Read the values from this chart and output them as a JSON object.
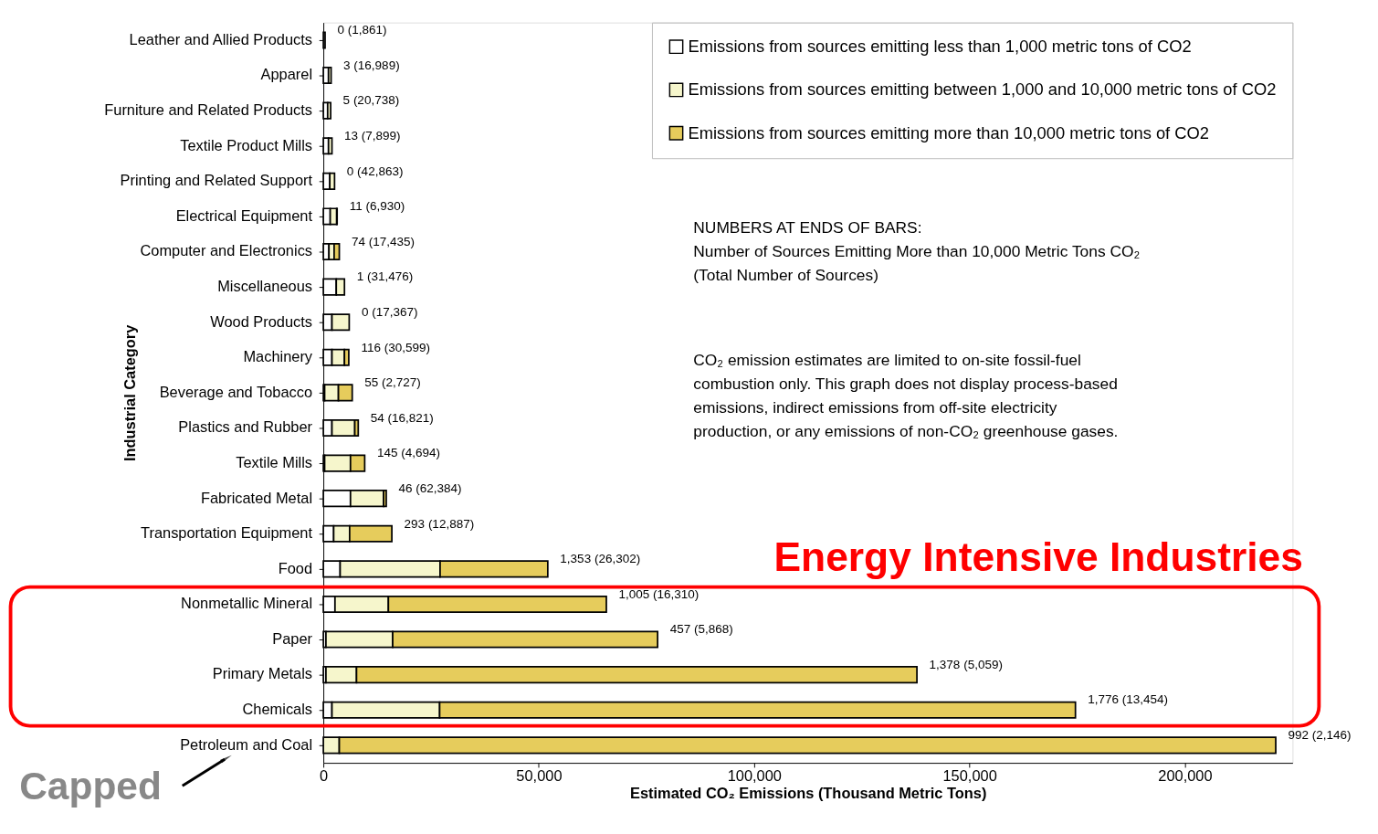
{
  "chart_data": {
    "type": "bar",
    "orientation": "horizontal",
    "stacked": true,
    "xlabel": "Estimated CO₂ Emissions (Thousand Metric Tons)",
    "ylabel": "Industrial Category",
    "categories": [
      "Leather and Allied Products",
      "Apparel",
      "Furniture and Related Products",
      "Textile Product Mills",
      "Printing and Related Support",
      "Electrical Equipment",
      "Computer and Electronics",
      "Miscellaneous",
      "Wood Products",
      "Machinery",
      "Beverage and Tobacco",
      "Plastics and Rubber",
      "Textile Mills",
      "Fabricated Metal",
      "Transportation Equipment",
      "Food",
      "Nonmetallic Mineral",
      "Paper",
      "Primary Metals",
      "Chemicals",
      "Petroleum and Coal"
    ],
    "series": [
      {
        "name": "Emissions from sources emitting less than 1,000 metric tons of CO2",
        "color": "#ffffff",
        "values": [
          400,
          1200,
          1000,
          1200,
          1500,
          1600,
          1300,
          3000,
          2000,
          2000,
          300,
          2000,
          300,
          6300,
          2400,
          3900,
          2700,
          600,
          600,
          2000,
          0
        ]
      },
      {
        "name": "Emissions from sources emitting between 1,000 and 10,000 metric tons of CO2",
        "color": "#f6f6cc",
        "values": [
          0,
          600,
          700,
          800,
          1100,
          1500,
          1200,
          1900,
          4000,
          2900,
          3200,
          5300,
          6000,
          7700,
          3700,
          23200,
          12400,
          15500,
          7100,
          25000,
          3700
        ]
      },
      {
        "name": "Emissions from sources emitting more than 10,000 metric tons of CO2",
        "color": "#e6cc5c",
        "values": [
          0,
          0,
          0,
          0,
          0,
          100,
          1200,
          0,
          0,
          1000,
          3200,
          800,
          3300,
          600,
          9800,
          25000,
          50600,
          61500,
          130100,
          147600,
          217400
        ]
      }
    ],
    "xlim": [
      0,
      225000
    ],
    "xticks": [
      {
        "value": 0,
        "label": "0"
      },
      {
        "value": 50000,
        "label": "50,000"
      },
      {
        "value": 100000,
        "label": "100,000"
      },
      {
        "value": 150000,
        "label": "150,000"
      },
      {
        "value": 200000,
        "label": "200,000"
      }
    ],
    "grid": false,
    "legend": "top right",
    "annotations": [
      "NUMBERS AT ENDS OF BARS:\nNumber of Sources Emitting More than 10,000 Metric Tons CO₂\n(Total Number of Sources)",
      "CO₂ emission estimates are limited to on-site fossil-fuel\ncombustion only.  This graph does not display process-based\nemissions, indirect emissions from off-site electricity\nproduction, or any emissions of non-CO₂ greenhouse gases.",
      "Capped",
      "Energy Intensive Industries",
      {
        "text": "0 (1,861)",
        "x": 400,
        "y": "Leather and Allied Products"
      },
      {
        "text": "3 (16,989)",
        "x": 1800,
        "y": "Apparel"
      },
      {
        "text": "5 (20,738)",
        "x": 1700,
        "y": "Furniture and Related Products"
      },
      {
        "text": "13 (7,899)",
        "x": 2000,
        "y": "Textile Product Mills"
      },
      {
        "text": "0 (42,863)",
        "x": 2600,
        "y": "Printing and Related Support"
      },
      {
        "text": "11 (6,930)",
        "x": 3200,
        "y": "Electrical Equipment"
      },
      {
        "text": "74 (17,435)",
        "x": 3700,
        "y": "Computer and Electronics"
      },
      {
        "text": "1 (31,476)",
        "x": 4900,
        "y": "Miscellaneous"
      },
      {
        "text": "0 (17,367)",
        "x": 6000,
        "y": "Wood Products"
      },
      {
        "text": "116 (30,599)",
        "x": 5900,
        "y": "Machinery"
      },
      {
        "text": "55 (2,727)",
        "x": 6700,
        "y": "Beverage and Tobacco"
      },
      {
        "text": "54 (16,821)",
        "x": 8100,
        "y": "Plastics and Rubber"
      },
      {
        "text": "145 (4,694)",
        "x": 9600,
        "y": "Textile Mills"
      },
      {
        "text": "46 (62,384)",
        "x": 14600,
        "y": "Fabricated Metal"
      },
      {
        "text": "293 (12,887)",
        "x": 15900,
        "y": "Transportation Equipment"
      },
      {
        "text": "1,353 (26,302)",
        "x": 52100,
        "y": "Food"
      },
      {
        "text": "1,005 (16,310)",
        "x": 65700,
        "y": "Nonmetallic Mineral"
      },
      {
        "text": "457 (5,868)",
        "x": 77600,
        "y": "Paper"
      },
      {
        "text": "1,378 (5,059)",
        "x": 137800,
        "y": "Primary Metals"
      },
      {
        "text": "1,776 (13,454)",
        "x": 174600,
        "y": "Chemicals"
      },
      {
        "text": "992 (2,146)",
        "x": 221100,
        "y": "Petroleum and Coal"
      }
    ]
  }
}
